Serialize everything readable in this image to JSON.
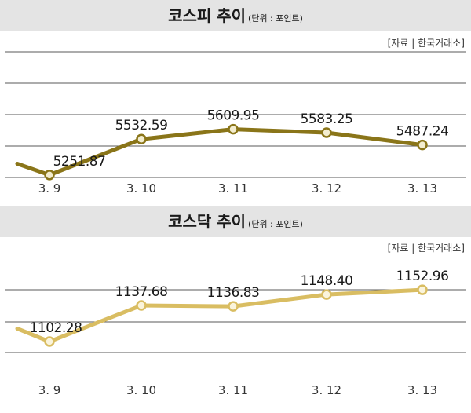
{
  "charts": [
    {
      "title": "코스피 추이",
      "unit": "(단위 : 포인트)",
      "source": "[자료 | 한국거래소]",
      "line_color": "#8a7519",
      "marker_fill": "#f3edcf"
    },
    {
      "title": "코스닥 추이",
      "unit": "(단위 : 포인트)",
      "source": "[자료 | 한국거래소]",
      "line_color": "#d9bd62",
      "marker_fill": "#faf4dc"
    }
  ],
  "chart_data": [
    {
      "type": "line",
      "title": "코스피 추이",
      "categories": [
        "3. 9",
        "3. 10",
        "3. 11",
        "3. 12",
        "3. 13"
      ],
      "series": [
        {
          "values": [
            5251.87,
            5532.59,
            5609.95,
            5583.25,
            5487.24
          ]
        }
      ],
      "data_labels": [
        "5251.87",
        "5532.59",
        "5609.95",
        "5583.25",
        "5487.24"
      ],
      "start_value": 5340,
      "ylim": [
        4900,
        6500
      ],
      "grid": true,
      "xlabel": "",
      "ylabel": ""
    },
    {
      "type": "line",
      "title": "코스닥 추이",
      "categories": [
        "3. 9",
        "3. 10",
        "3. 11",
        "3. 12",
        "3. 13"
      ],
      "series": [
        {
          "values": [
            1102.28,
            1137.68,
            1136.83,
            1148.4,
            1152.96
          ]
        }
      ],
      "data_labels": [
        "1102.28",
        "1137.68",
        "1136.83",
        "1148.40",
        "1152.96"
      ],
      "start_value": 1115,
      "ylim": [
        1020,
        1220
      ],
      "grid": true,
      "xlabel": "",
      "ylabel": ""
    }
  ]
}
